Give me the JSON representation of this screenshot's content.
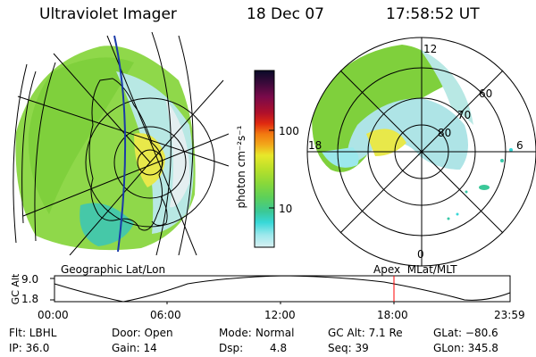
{
  "header": {
    "instrument": "Ultraviolet Imager",
    "date": "18 Dec 07",
    "time": "17:58:52 UT"
  },
  "geo_panel": {
    "label": "Geographic Lat/Lon"
  },
  "polar_panel": {
    "label": "Apex  MLat/MLT",
    "mlt_labels": [
      "12",
      "18",
      "6",
      "0"
    ],
    "lat_labels": [
      "60",
      "70",
      "80"
    ]
  },
  "colorbar": {
    "unit_label": "photon cm⁻²s⁻¹",
    "tick_labels": [
      "100",
      "10"
    ],
    "colors": [
      "#0a0a28",
      "#3a0a3a",
      "#7a0a4a",
      "#b0102a",
      "#e02a10",
      "#f27a10",
      "#f2a81a",
      "#e8e82a",
      "#b8e02a",
      "#88d83a",
      "#5cd05a",
      "#3ac898",
      "#38d8d8",
      "#9ce8ec",
      "#d8f0f2"
    ]
  },
  "altitude_plot": {
    "ylabel": "GC Alt",
    "ytick_labels": [
      "9.0",
      "1.8"
    ],
    "xtick_labels": [
      "00:00",
      "06:00",
      "12:00",
      "18:00",
      "23:59"
    ],
    "marker_color": "#ff0000"
  },
  "status": {
    "flt": "Flt: LBHL",
    "ip": "IP: 36.0",
    "door": "Door: Open",
    "gain": "Gain: 14",
    "mode_label": "Mode:",
    "mode_value": "Normal",
    "dsp_label": "Dsp:",
    "dsp_value": "4.8",
    "gc_alt": "GC Alt: 7.1 Re",
    "seq": "Seq: 39",
    "glat": "GLat: −80.6",
    "glon": "GLon: 345.8"
  }
}
